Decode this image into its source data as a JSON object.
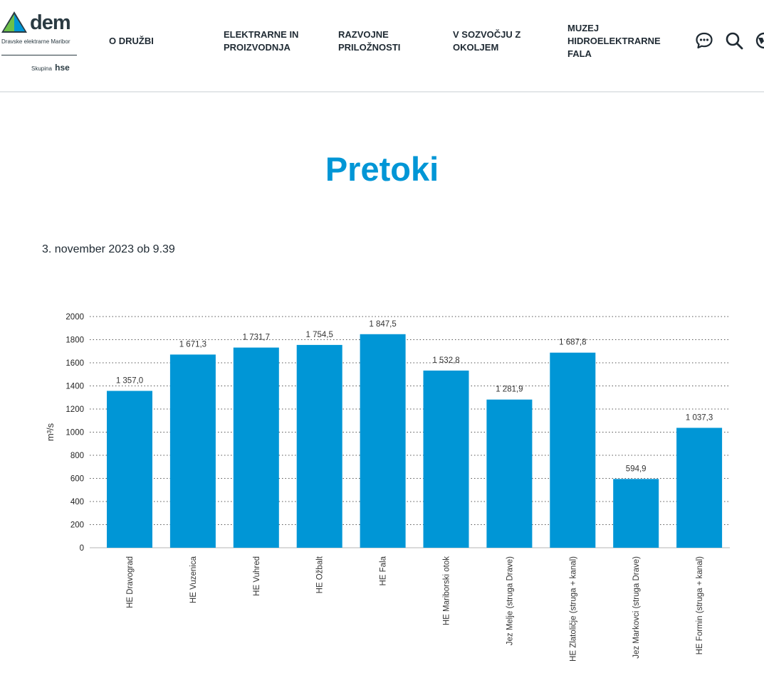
{
  "logo": {
    "word": "dem",
    "subtitle": "Dravske elektrarne Maribor",
    "group_prefix": "Skupina",
    "group_name": "hse"
  },
  "nav": {
    "items": [
      {
        "line1": "O DRUŽBI",
        "line2": "",
        "line3": ""
      },
      {
        "line1": "ELEKTRARNE IN",
        "line2": "PROIZVODNJA",
        "line3": ""
      },
      {
        "line1": "RAZVOJNE",
        "line2": "PRILOŽNOSTI",
        "line3": ""
      },
      {
        "line1": "V SOZVOČJU Z",
        "line2": "OKOLJEM",
        "line3": ""
      },
      {
        "line1": "MUZEJ",
        "line2": "HIDROELEKTRARNE",
        "line3": "FALA"
      }
    ]
  },
  "header_icons": [
    "chat-icon",
    "search-icon",
    "language-icon"
  ],
  "colors": {
    "accent": "#0096d6",
    "bar": "#0096d6",
    "text": "#1f2a33"
  },
  "page": {
    "title": "Pretoki",
    "timestamp": "3. november 2023 ob 9.39"
  },
  "chart_data": {
    "type": "bar",
    "ylabel": "m³/s",
    "ylim": [
      0,
      2000
    ],
    "yticks": [
      0,
      200,
      400,
      600,
      800,
      1000,
      1200,
      1400,
      1600,
      1800,
      2000
    ],
    "grid": true,
    "categories": [
      "HE Dravograd",
      "HE Vuzenica",
      "HE Vuhred",
      "HE Ožbalt",
      "HE Fala",
      "HE Mariborski otok",
      "Jez Melje (struga Drave)",
      "HE Zlatoličje (struga + kanal)",
      "Jez Markovci (struga Drave)",
      "HE Formin (struga + kanal)"
    ],
    "values": [
      1357.0,
      1671.3,
      1731.7,
      1754.5,
      1847.5,
      1532.8,
      1281.9,
      1687.8,
      594.9,
      1037.3
    ],
    "value_labels": [
      "1 357,0",
      "1 671,3",
      "1 731,7",
      "1 754,5",
      "1 847,5",
      "1 532,8",
      "1 281,9",
      "1 687,8",
      "594,9",
      "1 037,3"
    ]
  }
}
